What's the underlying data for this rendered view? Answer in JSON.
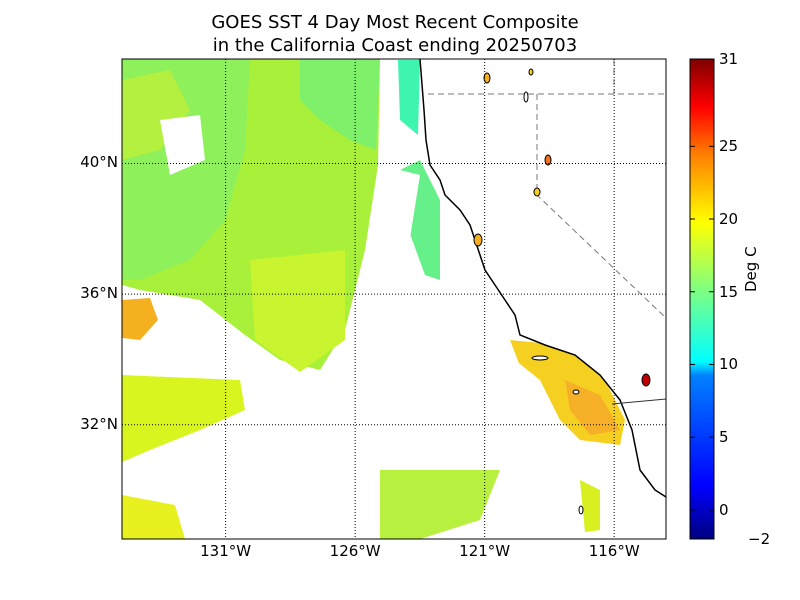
{
  "title": {
    "line1": "GOES SST 4 Day Most Recent Composite",
    "line2": "in the California Coast ending 20250703"
  },
  "map": {
    "lat_range": [
      28.5,
      43.2
    ],
    "lon_range": [
      -135.0,
      -114.0
    ],
    "lat_labels": [
      {
        "value": 40,
        "text": "40°N"
      },
      {
        "value": 36,
        "text": "36°N"
      },
      {
        "value": 32,
        "text": "32°N"
      }
    ],
    "lon_labels": [
      {
        "value": -131,
        "text": "131°W"
      },
      {
        "value": -126,
        "text": "126°W"
      },
      {
        "value": -121,
        "text": "121°W"
      },
      {
        "value": -116,
        "text": "116°W"
      }
    ],
    "grid_style": "dotted",
    "land_color": "#ffffff",
    "coastline_color": "#000000",
    "state_border_style": "dashed gray"
  },
  "colorbar": {
    "label": "Deg C",
    "min": -2,
    "max": 31,
    "ticks": [
      {
        "value": 31,
        "text": "31"
      },
      {
        "value": 25,
        "text": "25"
      },
      {
        "value": 20,
        "text": "20"
      },
      {
        "value": 15,
        "text": "15"
      },
      {
        "value": 10,
        "text": "10"
      },
      {
        "value": 5,
        "text": "5"
      },
      {
        "value": 0,
        "text": "0"
      },
      {
        "value": -2,
        "text": "−2"
      }
    ],
    "colormap": [
      "#00007f",
      "#0000ff",
      "#0080ff",
      "#00ffff",
      "#80ff80",
      "#ffff00",
      "#ff8000",
      "#ff0000",
      "#7f0000"
    ]
  }
}
